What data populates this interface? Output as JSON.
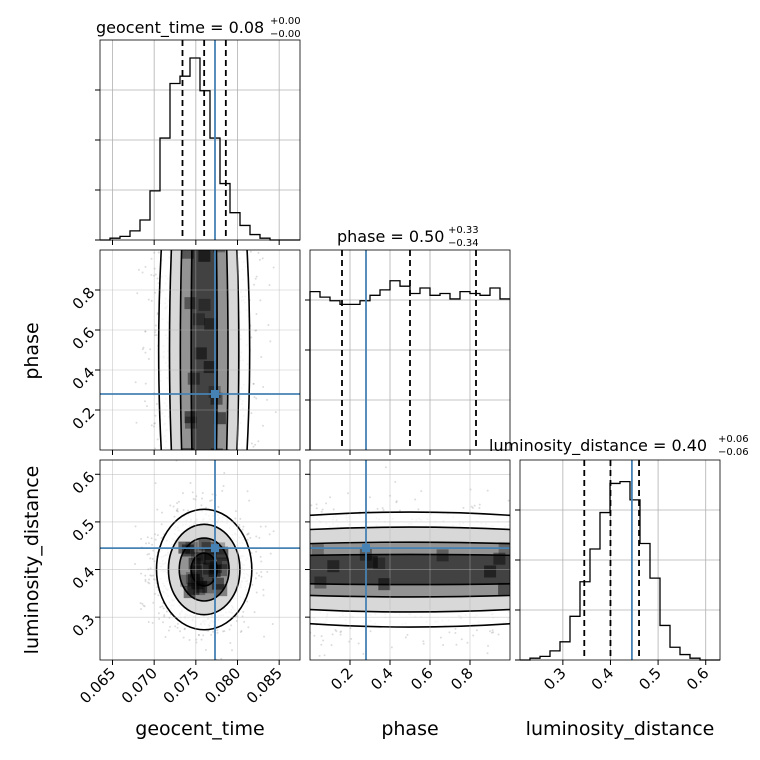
{
  "chart_data": {
    "type": "corner",
    "parameters": [
      {
        "name": "geocent_time",
        "range": [
          0.0635,
          0.0875
        ],
        "ticks": [
          "0.065",
          "0.070",
          "0.075",
          "0.080",
          "0.085"
        ],
        "tick_values": [
          0.065,
          0.07,
          0.075,
          0.08,
          0.085
        ],
        "truth": 0.0773,
        "title": {
          "base": "geocent_time = 0.08",
          "plus": "+0.00",
          "minus": "−0.00"
        },
        "quantiles": [
          0.0734,
          0.076,
          0.0786
        ]
      },
      {
        "name": "phase",
        "range": [
          0.0,
          1.0
        ],
        "ticks": [
          "0.2",
          "0.4",
          "0.6",
          "0.8"
        ],
        "tick_values": [
          0.2,
          0.4,
          0.6,
          0.8
        ],
        "truth": 0.28,
        "title": {
          "base": "phase = 0.50",
          "plus": "+0.33",
          "minus": "−0.34"
        },
        "quantiles": [
          0.16,
          0.5,
          0.83
        ]
      },
      {
        "name": "luminosity_distance",
        "range": [
          0.21,
          0.63
        ],
        "ticks": [
          "0.3",
          "0.4",
          "0.5",
          "0.6"
        ],
        "tick_values": [
          0.3,
          0.4,
          0.5,
          0.6
        ],
        "truth": 0.445,
        "title": {
          "base": "luminosity_distance = 0.40",
          "plus": "+0.06",
          "minus": "−0.06"
        },
        "quantiles": [
          0.345,
          0.4,
          0.46
        ]
      }
    ],
    "histograms": [
      [
        0.0,
        0.01,
        0.02,
        0.05,
        0.11,
        0.27,
        0.56,
        0.86,
        0.9,
        1.0,
        0.82,
        0.56,
        0.31,
        0.15,
        0.08,
        0.03,
        0.01,
        0.0,
        0.0,
        0.0
      ],
      [
        0.87,
        0.84,
        0.82,
        0.8,
        0.8,
        0.82,
        0.85,
        0.88,
        0.93,
        0.9,
        0.86,
        0.89,
        0.85,
        0.86,
        0.83,
        0.87,
        0.86,
        0.85,
        0.89,
        0.83
      ],
      [
        0.0,
        0.01,
        0.02,
        0.05,
        0.1,
        0.24,
        0.43,
        0.61,
        0.81,
        0.97,
        0.98,
        0.88,
        0.64,
        0.45,
        0.19,
        0.07,
        0.03,
        0.01,
        0.0,
        0.0
      ]
    ],
    "grid": true,
    "truth_color": "#4682b4"
  }
}
